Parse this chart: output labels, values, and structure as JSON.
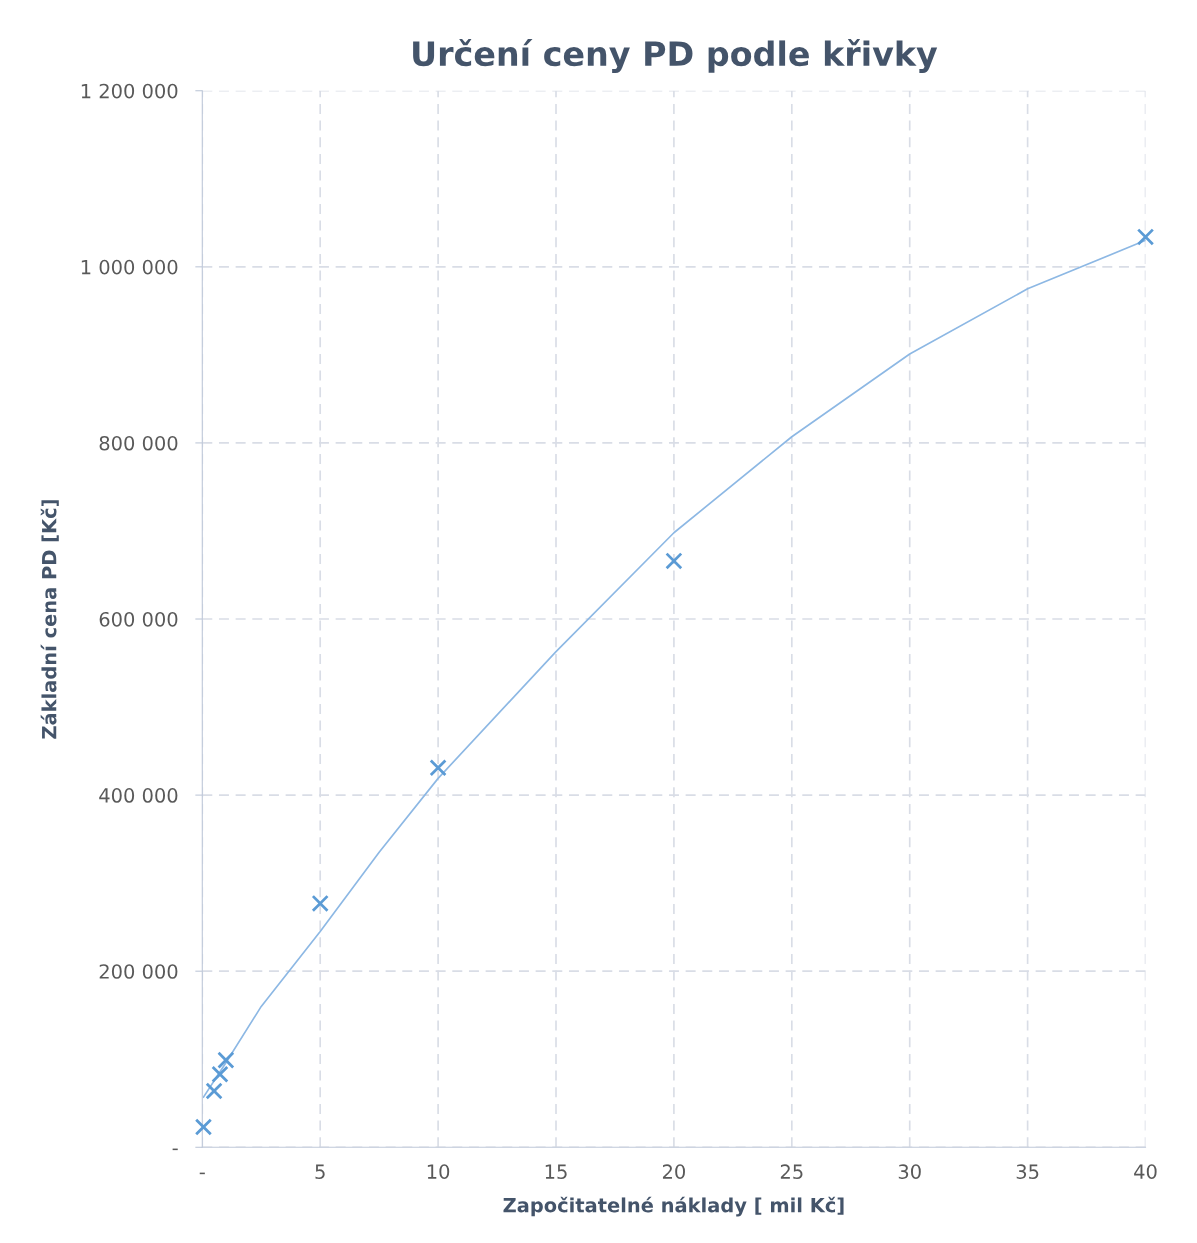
{
  "chart_data": {
    "type": "scatter",
    "title": "Určení ceny PD podle křivky",
    "xlabel": "Započitatelné náklady [ mil Kč]",
    "ylabel": "Základní cena PD [Kč]",
    "series": [
      {
        "color": "#5b9bd5",
        "marker": "cross",
        "x": [
          0.05,
          0.5,
          0.75,
          1,
          5,
          10,
          20,
          40
        ],
        "values": [
          23000,
          64000,
          83000,
          99000,
          277000,
          431000,
          666000,
          1034000
        ]
      },
      {
        "type": "line",
        "color": "#8db8e4",
        "line_style": "solid",
        "marker": "none",
        "x": [
          0.05,
          1,
          2.5,
          5,
          7.5,
          10,
          15,
          20,
          25,
          30,
          35,
          40
        ],
        "values": [
          57000,
          96000,
          160000,
          245000,
          335000,
          419000,
          563000,
          698000,
          807000,
          901000,
          975000,
          1030000
        ]
      }
    ],
    "xlim": [
      0,
      40
    ],
    "xticks": [
      {
        "value": 0,
        "label": "-"
      },
      5,
      10,
      15,
      20,
      25,
      30,
      35,
      40
    ],
    "ylim": [
      0,
      1200000
    ],
    "yticks": [
      {
        "value": 0,
        "label": "-"
      },
      {
        "value": 200000,
        "label": "200 000"
      },
      {
        "value": 400000,
        "label": "400 000"
      },
      {
        "value": 600000,
        "label": "600 000"
      },
      {
        "value": 800000,
        "label": "800 000"
      },
      {
        "value": 1000000,
        "label": "1 000 000"
      },
      {
        "value": 1200000,
        "label": "1 200 000"
      }
    ],
    "grid": true,
    "legend": false
  }
}
